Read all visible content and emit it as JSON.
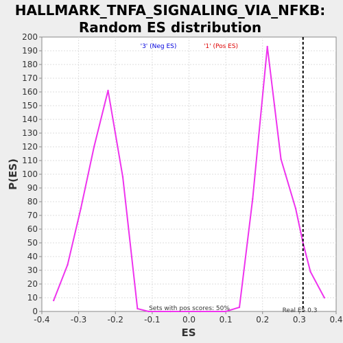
{
  "chart_data": {
    "type": "line",
    "title": "HALLMARK_TNFA_SIGNALING_VIA_NFKB:",
    "subtitle": "Random ES distribution",
    "xlabel": "ES",
    "ylabel": "P(ES)",
    "xlim": [
      -0.4,
      0.4
    ],
    "ylim": [
      0,
      200
    ],
    "xticks": [
      -0.4,
      -0.3,
      -0.2,
      -0.1,
      0.0,
      0.1,
      0.2,
      0.3,
      0.4
    ],
    "xtick_labels": [
      "-0.4",
      "-0.3",
      "-0.2",
      "-0.1",
      "0.0",
      "0.1",
      "0.2",
      "0.3",
      "0.4"
    ],
    "yticks": [
      0,
      10,
      20,
      30,
      40,
      50,
      60,
      70,
      80,
      90,
      100,
      110,
      120,
      130,
      140,
      150,
      160,
      170,
      180,
      190,
      200
    ],
    "ytick_labels": [
      "0",
      "10",
      "20",
      "30",
      "40",
      "50",
      "60",
      "70",
      "80",
      "90",
      "100",
      "110",
      "120",
      "130",
      "140",
      "150",
      "160",
      "170",
      "180",
      "190",
      "200"
    ],
    "grid": true,
    "series": [
      {
        "color": "#ee33ee",
        "x": [
          -0.368,
          -0.33,
          -0.294,
          -0.258,
          -0.22,
          -0.18,
          -0.14,
          -0.11,
          -0.05,
          0.03,
          0.1,
          0.137,
          0.173,
          0.213,
          0.25,
          0.29,
          0.31,
          0.33,
          0.368
        ],
        "y": [
          8,
          34,
          75,
          120,
          161,
          98,
          2,
          0,
          0,
          0,
          0,
          3,
          82,
          193,
          111,
          75,
          50,
          29,
          10
        ]
      }
    ],
    "legend": [
      {
        "label": "'3' (Neg ES)",
        "color": "#0000dd"
      },
      {
        "label": "'1' (Pos ES)",
        "color": "#dd0000"
      }
    ],
    "real_es": {
      "value": 0.31,
      "label": "Real ES 0.3"
    },
    "annotation": "Sets with pos scores: 50%"
  }
}
